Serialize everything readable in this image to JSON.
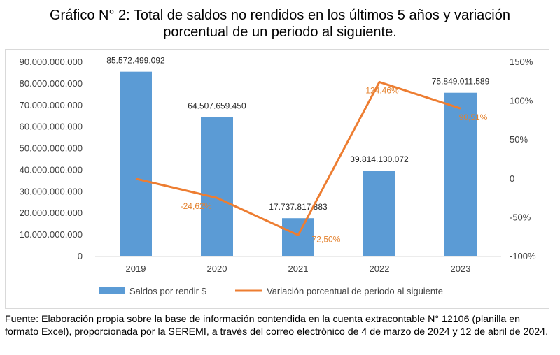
{
  "title_line1": "Gráfico N° 2: Total de saldos no rendidos en los últimos 5 años y variación",
  "title_line2": "porcentual de un periodo al siguiente.",
  "source_text": "Fuente: Elaboración propia sobre la base de información contendida en la cuenta extracontable N° 12106 (planilla en formato Excel), proporcionada por la SEREMI, a través del correo electrónico de 4 de marzo de 2024 y 12 de abril de 2024.",
  "colors": {
    "bar": "#5b9bd5",
    "line": "#ed7d31",
    "grid": "#d9d9d9"
  },
  "chart_data": {
    "type": "bar",
    "categories": [
      "2019",
      "2020",
      "2021",
      "2022",
      "2023"
    ],
    "series": [
      {
        "name": "Saldos por rendir $",
        "type": "bar",
        "axis": "left",
        "values": [
          85572499092,
          64507659450,
          17737817883,
          39814130072,
          75849011589
        ],
        "labels": [
          "85.572.499.092",
          "64.507.659.450",
          "17.737.817.883",
          "39.814.130.072",
          "75.849.011.589"
        ]
      },
      {
        "name": "Variación porcentual de periodo al siguiente",
        "type": "line",
        "axis": "right",
        "values": [
          0,
          -24.62,
          -72.5,
          124.46,
          90.51
        ],
        "labels": [
          "",
          "-24,62%",
          "-72,50%",
          "124,46%",
          "90,51%"
        ]
      }
    ],
    "y_left": {
      "ylim": [
        0,
        90000000000
      ],
      "ticks": [
        "0",
        "10.000.000.000",
        "20.000.000.000",
        "30.000.000.000",
        "40.000.000.000",
        "50.000.000.000",
        "60.000.000.000",
        "70.000.000.000",
        "80.000.000.000",
        "90.000.000.000"
      ]
    },
    "y_right": {
      "ylim": [
        -100,
        150
      ],
      "ticks": [
        "-100%",
        "-50%",
        "0",
        "50%",
        "100%",
        "150%"
      ]
    },
    "grid": false,
    "legend_position": "bottom"
  }
}
